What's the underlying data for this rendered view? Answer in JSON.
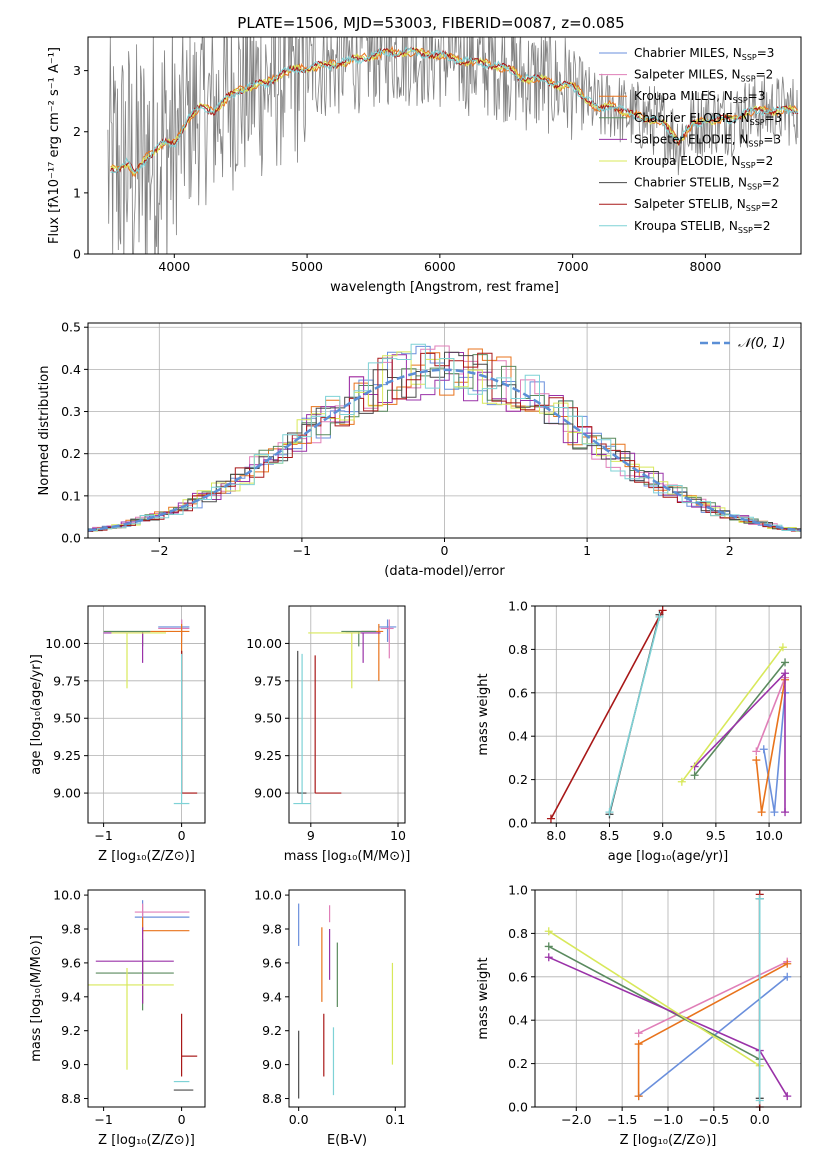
{
  "figure": {
    "title": "PLATE=1506, MJD=53003, FIBERID=0087, z=0.085"
  },
  "colors": {
    "Chabrier MILES": "#6a8fdc",
    "Salpeter MILES": "#e07fb8",
    "Kroupa MILES": "#e8731c",
    "Chabrier ELODIE": "#5a8a5e",
    "Salpeter ELODIE": "#9a32a8",
    "Kroupa ELODIE": "#d8e85a",
    "Chabrier STELIB": "#4a4a4a",
    "Salpeter STELIB": "#a81818",
    "Kroupa STELIB": "#7ed2d6",
    "observed": "#808080"
  },
  "chart_data": [
    {
      "id": "spectrum",
      "type": "line",
      "xlabel": "wavelength [Angstrom, rest frame]",
      "ylabel": "Flux [fλ10⁻¹⁷ erg cm⁻² s⁻¹ A⁻¹]",
      "xlim": [
        3350,
        8720
      ],
      "ylim": [
        0,
        3.55
      ],
      "xticks": [
        4000,
        5000,
        6000,
        7000,
        8000
      ],
      "yticks": [
        0,
        1,
        2,
        3
      ],
      "legend_position": "top-right",
      "legend": [
        {
          "name": "Chabrier MILES",
          "nssp": "3"
        },
        {
          "name": "Salpeter MILES",
          "nssp": "2"
        },
        {
          "name": "Kroupa MILES",
          "nssp": "3"
        },
        {
          "name": "Chabrier ELODIE",
          "nssp": "3"
        },
        {
          "name": "Salpeter ELODIE",
          "nssp": "3"
        },
        {
          "name": "Kroupa ELODIE",
          "nssp": "2"
        },
        {
          "name": "Chabrier STELIB",
          "nssp": "2"
        },
        {
          "name": "Salpeter STELIB",
          "nssp": "2"
        },
        {
          "name": "Kroupa STELIB",
          "nssp": "2"
        }
      ],
      "continuum": {
        "x": [
          3500,
          3560,
          3650,
          3700,
          3800,
          3900,
          4000,
          4100,
          4200,
          4300,
          4400,
          4500,
          4600,
          4700,
          4800,
          4900,
          5000,
          5200,
          5400,
          5600,
          5800,
          6000,
          6200,
          6400,
          6550,
          6600,
          6700,
          6800,
          6900,
          7000,
          7100,
          7200,
          7300,
          7400,
          7500,
          7600,
          7700,
          7800,
          7900,
          8000,
          8100,
          8200,
          8300,
          8400,
          8600,
          8720
        ],
        "y": [
          1.35,
          1.4,
          1.5,
          1.3,
          1.6,
          1.8,
          1.8,
          2.2,
          2.4,
          2.35,
          2.55,
          2.7,
          2.75,
          2.8,
          2.95,
          3.0,
          3.05,
          3.1,
          3.2,
          3.3,
          3.3,
          3.25,
          3.15,
          3.1,
          3.0,
          2.9,
          2.85,
          2.85,
          2.75,
          2.75,
          2.55,
          2.35,
          2.45,
          2.3,
          2.25,
          2.2,
          2.1,
          1.85,
          2.1,
          2.2,
          2.2,
          2.2,
          2.3,
          2.35,
          2.35,
          2.35
        ]
      }
    },
    {
      "id": "residuals",
      "type": "histogram",
      "xlabel": "(data-model)/error",
      "ylabel": "Normed distribution",
      "xlim": [
        -2.5,
        2.5
      ],
      "ylim": [
        0,
        0.51
      ],
      "xticks": [
        -2,
        -1,
        0,
        1,
        2
      ],
      "yticks": [
        0.0,
        0.1,
        0.2,
        0.3,
        0.4,
        0.5
      ],
      "grid": true,
      "reference_curve": {
        "name": "𝒩(0, 1)",
        "mean": 0,
        "sigma": 1,
        "style": "dashed"
      },
      "legend_position": "top-right"
    },
    {
      "id": "age_vs_Z",
      "type": "errorbar",
      "xlabel": "Z [log₁₀(Z/Z⊙)]",
      "ylabel": "age  [log₁₀(age/yr)]",
      "xlim": [
        -1.2,
        0.3
      ],
      "ylim": [
        8.8,
        10.25
      ],
      "xticks": [
        -1,
        0
      ],
      "yticks": [
        9.0,
        9.25,
        9.5,
        9.75,
        10.0
      ],
      "grid": true,
      "points": [
        {
          "model": "Chabrier MILES",
          "x": 0.0,
          "y": 10.11,
          "xerr": [
            0.3,
            0.1
          ],
          "yerr": [
            0.1,
            0.05
          ]
        },
        {
          "model": "Salpeter MILES",
          "x": 0.0,
          "y": 10.1,
          "xerr": [
            0.3,
            0.1
          ],
          "yerr": [
            0.05,
            0.06
          ]
        },
        {
          "model": "Kroupa MILES",
          "x": 0.0,
          "y": 10.08,
          "xerr": [
            0.4,
            0.1
          ],
          "yerr": [
            0.33,
            0.05
          ]
        },
        {
          "model": "Chabrier ELODIE",
          "x": -0.5,
          "y": 10.08,
          "xerr": [
            0.5,
            0.1
          ],
          "yerr": [
            0.1,
            0.0
          ]
        },
        {
          "model": "Salpeter ELODIE",
          "x": -0.5,
          "y": 10.07,
          "xerr": [
            0.5,
            0.1
          ],
          "yerr": [
            0.2,
            0.0
          ]
        },
        {
          "model": "Kroupa ELODIE",
          "x": -0.7,
          "y": 10.07,
          "xerr": [
            0.2,
            0.5
          ],
          "yerr": [
            0.37,
            0.0
          ]
        },
        {
          "model": "Chabrier STELIB",
          "x": 0.0,
          "y": 9.0,
          "xerr": [
            0.0,
            0.0
          ],
          "yerr": [
            0.0,
            0.95
          ]
        },
        {
          "model": "Salpeter STELIB",
          "x": 0.0,
          "y": 9.0,
          "xerr": [
            0.0,
            0.2
          ],
          "yerr": [
            0.0,
            0.95
          ]
        },
        {
          "model": "Kroupa STELIB",
          "x": 0.0,
          "y": 8.93,
          "xerr": [
            0.1,
            0.1
          ],
          "yerr": [
            0.0,
            1.0
          ]
        }
      ]
    },
    {
      "id": "age_vs_mass",
      "type": "errorbar",
      "xlabel": "mass [log₁₀(M/M⊙)]",
      "ylabel": "",
      "xlim": [
        8.75,
        10.08
      ],
      "ylim": [
        8.8,
        10.25
      ],
      "xticks": [
        9,
        10
      ],
      "yticks": [
        9.0,
        9.25,
        9.5,
        9.75,
        10.0
      ],
      "grid": true,
      "points": [
        {
          "model": "Chabrier MILES",
          "x": 9.88,
          "y": 10.11,
          "xerr": [
            0.1,
            0.1
          ],
          "yerr": [
            0.1,
            0.05
          ]
        },
        {
          "model": "Salpeter MILES",
          "x": 9.9,
          "y": 10.1,
          "xerr": [
            0.1,
            0.05
          ],
          "yerr": [
            0.2,
            0.06
          ]
        },
        {
          "model": "Kroupa MILES",
          "x": 9.78,
          "y": 10.08,
          "xerr": [
            0.2,
            0.05
          ],
          "yerr": [
            0.33,
            0.05
          ]
        },
        {
          "model": "Chabrier ELODIE",
          "x": 9.55,
          "y": 10.08,
          "xerr": [
            0.2,
            0.2
          ],
          "yerr": [
            0.1,
            0.0
          ]
        },
        {
          "model": "Salpeter ELODIE",
          "x": 9.6,
          "y": 10.07,
          "xerr": [
            0.2,
            0.2
          ],
          "yerr": [
            0.2,
            0.0
          ]
        },
        {
          "model": "Kroupa ELODIE",
          "x": 9.47,
          "y": 10.07,
          "xerr": [
            0.5,
            0.1
          ],
          "yerr": [
            0.37,
            0.0
          ]
        },
        {
          "model": "Chabrier STELIB",
          "x": 8.85,
          "y": 9.0,
          "xerr": [
            0.0,
            0.1
          ],
          "yerr": [
            0.0,
            0.95
          ]
        },
        {
          "model": "Salpeter STELIB",
          "x": 9.05,
          "y": 9.0,
          "xerr": [
            0.0,
            0.3
          ],
          "yerr": [
            0.0,
            0.92
          ]
        },
        {
          "model": "Kroupa STELIB",
          "x": 8.9,
          "y": 8.93,
          "xerr": [
            0.1,
            0.1
          ],
          "yerr": [
            0.0,
            1.0
          ]
        }
      ]
    },
    {
      "id": "weight_vs_age",
      "type": "line",
      "xlabel": "age  [log₁₀(age/yr)]",
      "ylabel": "mass weight",
      "xlim": [
        7.8,
        10.3
      ],
      "ylim": [
        0.0,
        1.0
      ],
      "xticks": [
        8.0,
        8.5,
        9.0,
        9.5,
        10.0
      ],
      "yticks": [
        0.0,
        0.2,
        0.4,
        0.6,
        0.8,
        1.0
      ],
      "grid": true,
      "series": [
        {
          "name": "Chabrier MILES",
          "x": [
            9.95,
            10.05,
            10.15
          ],
          "y": [
            0.34,
            0.05,
            0.6
          ]
        },
        {
          "name": "Salpeter MILES",
          "x": [
            9.88,
            10.15
          ],
          "y": [
            0.33,
            0.67
          ]
        },
        {
          "name": "Kroupa MILES",
          "x": [
            9.88,
            9.93,
            10.15
          ],
          "y": [
            0.29,
            0.05,
            0.66
          ]
        },
        {
          "name": "Chabrier ELODIE",
          "x": [
            9.3,
            10.15
          ],
          "y": [
            0.22,
            0.74
          ]
        },
        {
          "name": "Salpeter ELODIE",
          "x": [
            9.3,
            10.15,
            10.15
          ],
          "y": [
            0.26,
            0.69,
            0.05
          ]
        },
        {
          "name": "Kroupa ELODIE",
          "x": [
            9.18,
            10.13
          ],
          "y": [
            0.19,
            0.81
          ]
        },
        {
          "name": "Chabrier STELIB",
          "x": [
            8.5,
            8.97
          ],
          "y": [
            0.04,
            0.96
          ]
        },
        {
          "name": "Salpeter STELIB",
          "x": [
            7.95,
            9.0
          ],
          "y": [
            0.02,
            0.98
          ]
        },
        {
          "name": "Kroupa STELIB",
          "x": [
            8.5,
            8.97
          ],
          "y": [
            0.05,
            0.95
          ]
        }
      ]
    },
    {
      "id": "mass_vs_Z",
      "type": "errorbar",
      "xlabel": "Z [log₁₀(Z/Z⊙)]",
      "ylabel": "mass [log₁₀(M/M⊙)]",
      "xlim": [
        -1.2,
        0.3
      ],
      "ylim": [
        8.75,
        10.03
      ],
      "xticks": [
        -1,
        0
      ],
      "yticks": [
        8.8,
        9.0,
        9.2,
        9.4,
        9.6,
        9.8,
        10.0
      ],
      "grid": false,
      "points": [
        {
          "model": "Chabrier MILES",
          "x": -0.5,
          "y": 9.87,
          "xerr": [
            0.1,
            0.6
          ],
          "yerr": [
            0.1,
            0.1
          ]
        },
        {
          "model": "Salpeter MILES",
          "x": -0.5,
          "y": 9.9,
          "xerr": [
            0.1,
            0.6
          ],
          "yerr": [
            0.1,
            0.05
          ]
        },
        {
          "model": "Kroupa MILES",
          "x": -0.5,
          "y": 9.79,
          "xerr": [
            0.0,
            0.6
          ],
          "yerr": [
            0.43,
            0.08
          ]
        },
        {
          "model": "Chabrier ELODIE",
          "x": -0.5,
          "y": 9.54,
          "xerr": [
            0.6,
            0.4
          ],
          "yerr": [
            0.22,
            0.2
          ]
        },
        {
          "model": "Salpeter ELODIE",
          "x": -0.5,
          "y": 9.61,
          "xerr": [
            0.6,
            0.4
          ],
          "yerr": [
            0.25,
            0.2
          ]
        },
        {
          "model": "Kroupa ELODIE",
          "x": -0.7,
          "y": 9.47,
          "xerr": [
            0.5,
            0.6
          ],
          "yerr": [
            0.5,
            0.1
          ]
        },
        {
          "model": "Chabrier STELIB",
          "x": 0.0,
          "y": 8.85,
          "xerr": [
            0.1,
            0.15
          ],
          "yerr": [
            0.0,
            0.0
          ]
        },
        {
          "model": "Salpeter STELIB",
          "x": 0.0,
          "y": 9.05,
          "xerr": [
            0.0,
            0.2
          ],
          "yerr": [
            0.12,
            0.25
          ]
        },
        {
          "model": "Kroupa STELIB",
          "x": 0.0,
          "y": 8.9,
          "xerr": [
            0.1,
            0.1
          ],
          "yerr": [
            0.0,
            0.0
          ]
        }
      ]
    },
    {
      "id": "mass_vs_ebv",
      "type": "errorbar",
      "xlabel": "E(B-V)",
      "ylabel": "",
      "xlim": [
        -0.01,
        0.11
      ],
      "ylim": [
        8.75,
        10.03
      ],
      "xticks": [
        0.0,
        0.1
      ],
      "yticks": [
        8.8,
        9.0,
        9.2,
        9.4,
        9.6,
        9.8,
        10.0
      ],
      "grid": false,
      "points": [
        {
          "model": "Chabrier MILES",
          "x": 0.0,
          "y": 9.7,
          "xerr": [
            0,
            0
          ],
          "yerr": [
            0.0,
            0.25
          ]
        },
        {
          "model": "Salpeter MILES",
          "x": 0.032,
          "y": 9.84,
          "xerr": [
            0,
            0
          ],
          "yerr": [
            0.0,
            0.1
          ]
        },
        {
          "model": "Kroupa MILES",
          "x": 0.024,
          "y": 9.6,
          "xerr": [
            0,
            0
          ],
          "yerr": [
            0.23,
            0.21
          ]
        },
        {
          "model": "Chabrier ELODIE",
          "x": 0.04,
          "y": 9.52,
          "xerr": [
            0,
            0
          ],
          "yerr": [
            0.18,
            0.2
          ]
        },
        {
          "model": "Salpeter ELODIE",
          "x": 0.032,
          "y": 9.6,
          "xerr": [
            0,
            0
          ],
          "yerr": [
            0.1,
            0.2
          ]
        },
        {
          "model": "Kroupa ELODIE",
          "x": 0.097,
          "y": 9.3,
          "xerr": [
            0,
            0
          ],
          "yerr": [
            0.3,
            0.3
          ]
        },
        {
          "model": "Chabrier STELIB",
          "x": 0.0,
          "y": 9.0,
          "xerr": [
            0,
            0
          ],
          "yerr": [
            0.2,
            0.2
          ]
        },
        {
          "model": "Salpeter STELIB",
          "x": 0.026,
          "y": 9.1,
          "xerr": [
            0,
            0
          ],
          "yerr": [
            0.17,
            0.2
          ]
        },
        {
          "model": "Kroupa STELIB",
          "x": 0.036,
          "y": 9.02,
          "xerr": [
            0,
            0
          ],
          "yerr": [
            0.2,
            0.2
          ]
        }
      ]
    },
    {
      "id": "weight_vs_Z",
      "type": "line",
      "xlabel": "Z [log₁₀(Z/Z⊙)]",
      "ylabel": "mass weight",
      "xlim": [
        -2.45,
        0.45
      ],
      "ylim": [
        0.0,
        1.0
      ],
      "xticks": [
        -2.0,
        -1.5,
        -1.0,
        -0.5,
        0.0
      ],
      "yticks": [
        0.0,
        0.2,
        0.4,
        0.6,
        0.8,
        1.0
      ],
      "grid": true,
      "series": [
        {
          "name": "Chabrier MILES",
          "x": [
            -1.32,
            0.3
          ],
          "y": [
            0.05,
            0.6
          ]
        },
        {
          "name": "Salpeter MILES",
          "x": [
            -1.32,
            0.3
          ],
          "y": [
            0.34,
            0.67
          ]
        },
        {
          "name": "Kroupa MILES",
          "x": [
            -1.32,
            -1.32,
            0.3
          ],
          "y": [
            0.05,
            0.29,
            0.66
          ]
        },
        {
          "name": "Chabrier ELODIE",
          "x": [
            -2.3,
            0.0
          ],
          "y": [
            0.74,
            0.22
          ]
        },
        {
          "name": "Salpeter ELODIE",
          "x": [
            -2.3,
            0.0,
            0.3
          ],
          "y": [
            0.69,
            0.26,
            0.05
          ]
        },
        {
          "name": "Kroupa ELODIE",
          "x": [
            -2.3,
            0.0
          ],
          "y": [
            0.81,
            0.19
          ]
        },
        {
          "name": "Chabrier STELIB",
          "x": [
            0.0,
            0.0
          ],
          "y": [
            0.04,
            0.96
          ]
        },
        {
          "name": "Salpeter STELIB",
          "x": [
            0.0,
            0.0
          ],
          "y": [
            0.0,
            0.98
          ]
        },
        {
          "name": "Kroupa STELIB",
          "x": [
            0.0,
            0.0
          ],
          "y": [
            0.03,
            0.96
          ]
        }
      ]
    }
  ]
}
